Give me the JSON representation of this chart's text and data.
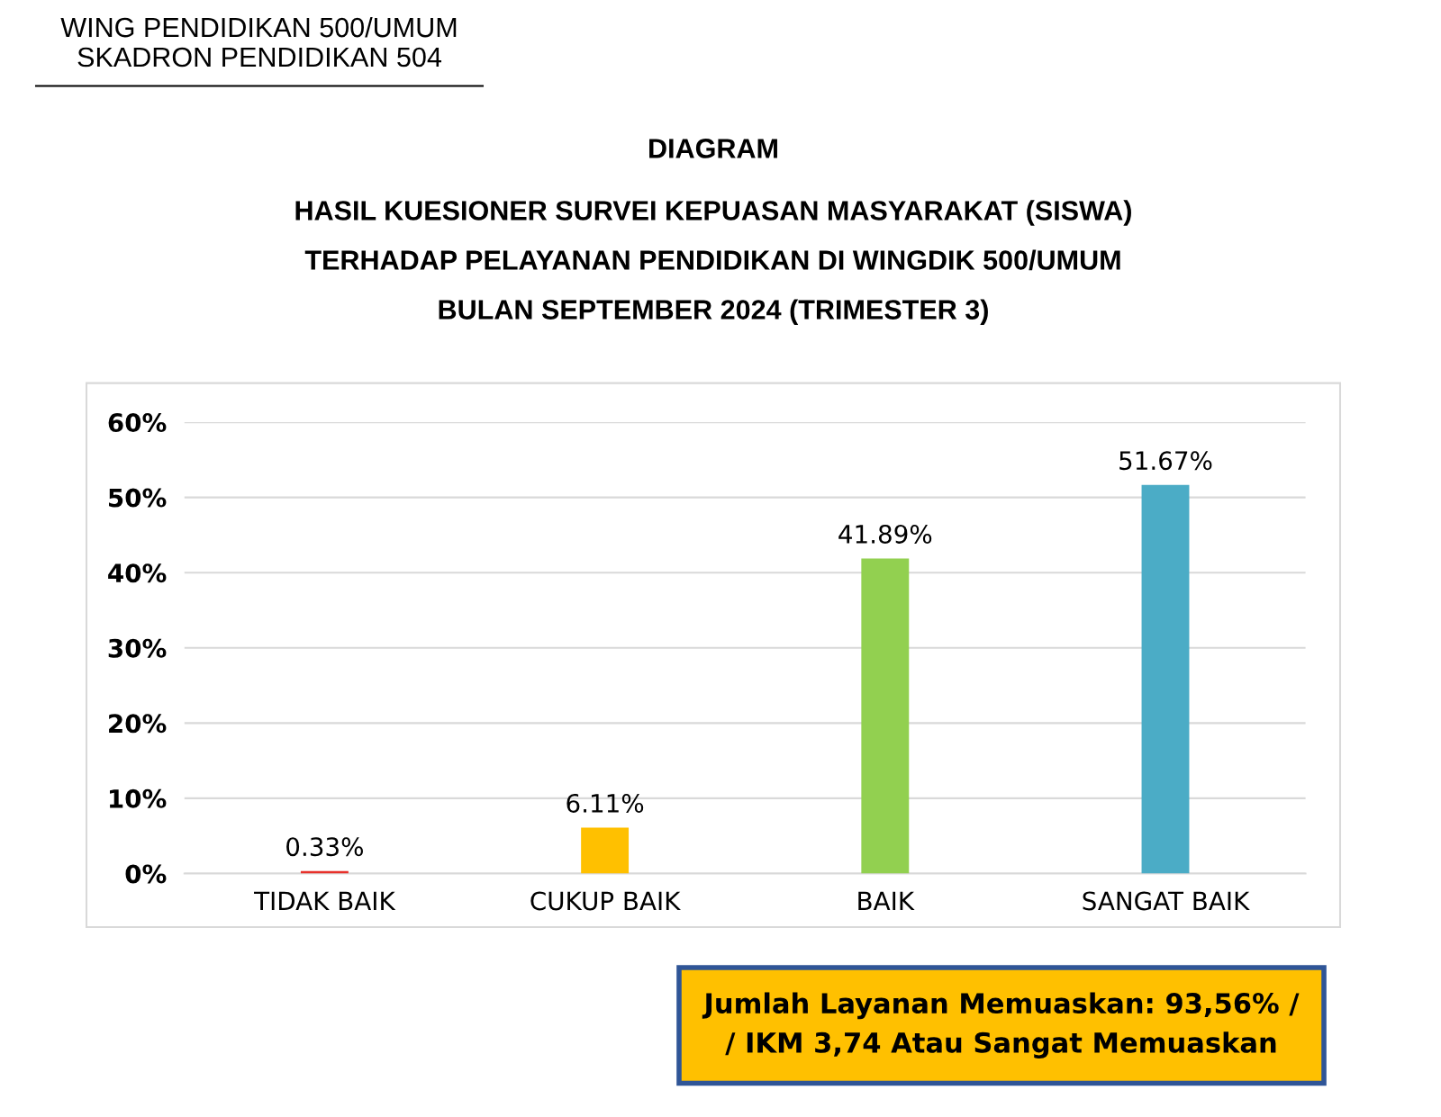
{
  "chart_data": {
    "type": "bar",
    "title": "DIAGRAM",
    "subtitle": "HASIL KUESIONER SURVEI KEPUASAN MASYARAKAT (SISWA)\nTERHADAP PELAYANAN PENDIDIKAN DI WINGDIK 500/UMUM\nBULAN SEPTEMBER 2024 (TRIMESTER 3)",
    "annotations": [
      "WING PENDIDIKAN 500/UMUM\nSKADRON PENDIDIKAN 504",
      "Jumlah Layanan Memuaskan: 93,56% /\n/ IKM 3,74 Atau Sangat Memuaskan"
    ],
    "categories": [
      "TIDAK BAIK",
      "CUKUP BAIK",
      "BAIK",
      "SANGAT BAIK"
    ],
    "values": [
      0.33,
      6.11,
      41.89,
      51.67
    ],
    "colors": [
      "#e8302a",
      "#ffc000",
      "#92d050",
      "#4bacc6"
    ],
    "value_labels": [
      "0.33%",
      "6.11%",
      "41.89%",
      "51.67%"
    ],
    "ylim": [
      0,
      60
    ],
    "yticks": [
      {
        "value": 0,
        "label": "0%"
      },
      {
        "value": 10,
        "label": "10%"
      },
      {
        "value": 20,
        "label": "20%"
      },
      {
        "value": 30,
        "label": "30%"
      },
      {
        "value": 40,
        "label": "40%"
      },
      {
        "value": 50,
        "label": "50%"
      },
      {
        "value": 60,
        "label": "60%"
      }
    ],
    "grid": "y",
    "legend": false
  }
}
